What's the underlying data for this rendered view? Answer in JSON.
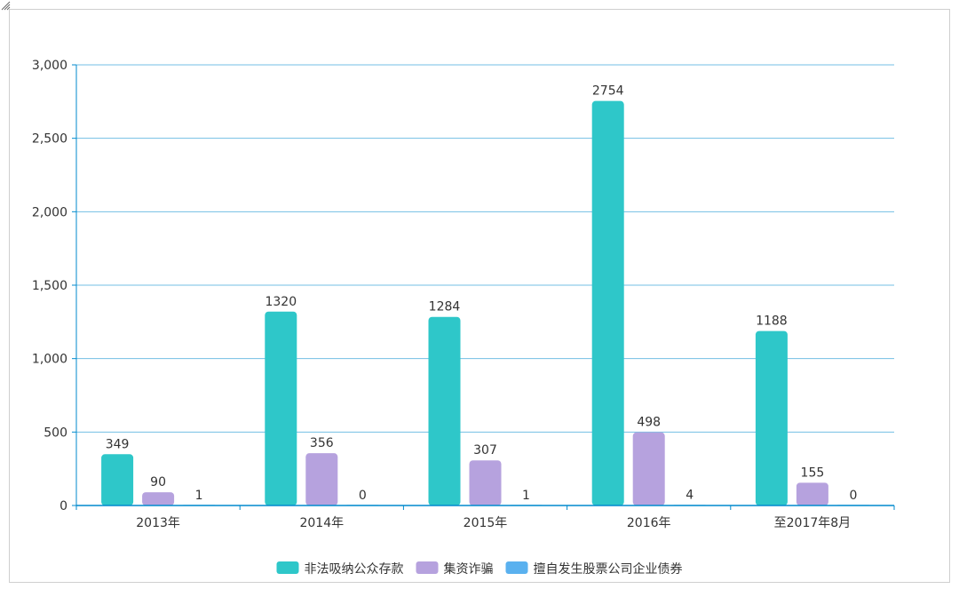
{
  "chart_data": {
    "type": "bar",
    "categories": [
      "2013年",
      "2014年",
      "2015年",
      "2016年",
      "至2017年8月"
    ],
    "series": [
      {
        "name": "非法吸纳公众存款",
        "values": [
          349,
          1320,
          1284,
          2754,
          1188
        ],
        "color": "#2ec7c9"
      },
      {
        "name": "集资诈骗",
        "values": [
          90,
          356,
          307,
          498,
          155
        ],
        "color": "#b6a2de"
      },
      {
        "name": "擅自发生股票公司企业债券",
        "values": [
          1,
          0,
          1,
          4,
          0
        ],
        "color": "#5ab1ef"
      }
    ],
    "ylim": [
      0,
      3000
    ],
    "yticks": [
      0,
      500,
      1000,
      1500,
      2000,
      2500,
      3000
    ],
    "ytick_labels": [
      "0",
      "500",
      "1,000",
      "1,500",
      "2,000",
      "2,500",
      "3,000"
    ],
    "grid": true,
    "legend": "bottom-center",
    "axis_color": "#008acd"
  }
}
